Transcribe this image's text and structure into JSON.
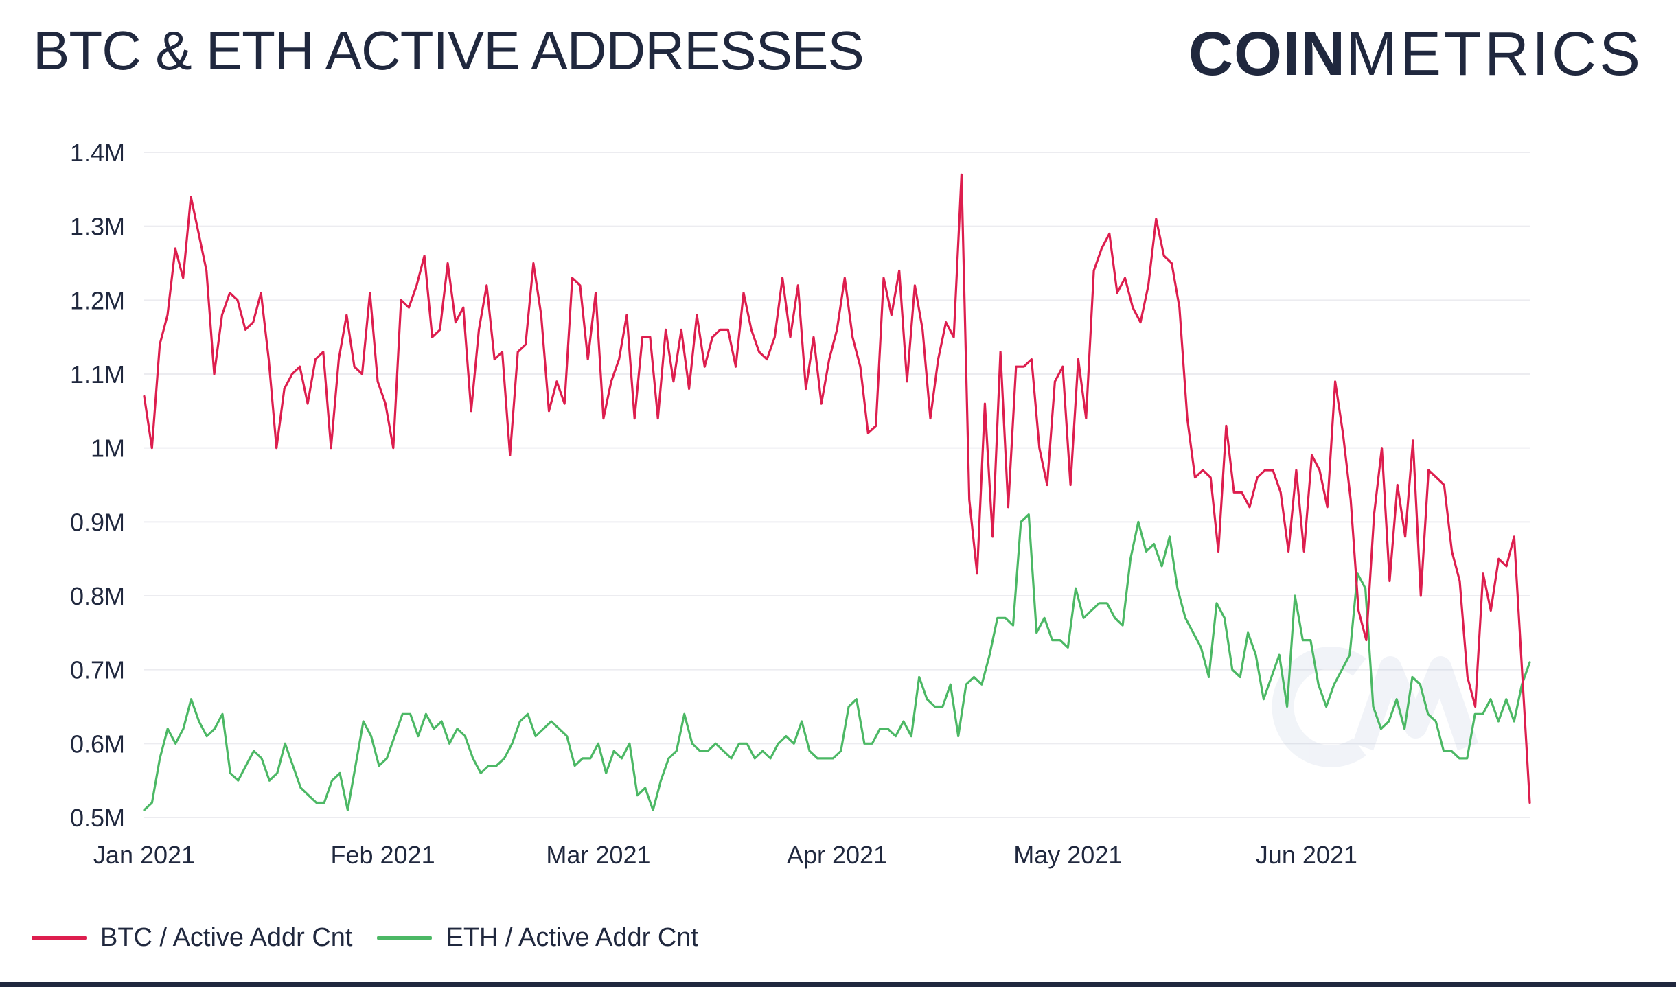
{
  "header": {
    "title": "BTC & ETH ACTIVE ADDRESSES"
  },
  "logo": {
    "bold": "COIN",
    "light": "METRICS"
  },
  "colors": {
    "btc": "#dd1e4e",
    "eth": "#4cb865",
    "grid": "#ececf0",
    "text": "#20283e"
  },
  "legend": {
    "btc_label": "BTC / Active Addr Cnt",
    "eth_label": "ETH / Active Addr Cnt"
  },
  "chart_data": {
    "type": "line",
    "title": "BTC & ETH ACTIVE ADDRESSES",
    "xlabel": "",
    "ylabel": "",
    "x_range": [
      "2021-01-01",
      "2021-06-30"
    ],
    "ylim": [
      0.5,
      1.4
    ],
    "y_unit": "M",
    "y_ticks": [
      0.5,
      0.6,
      0.7,
      0.8,
      0.9,
      1.0,
      1.1,
      1.2,
      1.3,
      1.4
    ],
    "y_tick_labels": [
      "0.5M",
      "0.6M",
      "0.7M",
      "0.8M",
      "0.9M",
      "1M",
      "1.1M",
      "1.2M",
      "1.3M",
      "1.4M"
    ],
    "x_ticks": [
      {
        "day": 0,
        "label": "Jan 2021"
      },
      {
        "day": 31,
        "label": "Feb 2021"
      },
      {
        "day": 59,
        "label": "Mar 2021"
      },
      {
        "day": 90,
        "label": "Apr 2021"
      },
      {
        "day": 120,
        "label": "May 2021"
      },
      {
        "day": 151,
        "label": "Jun 2021"
      }
    ],
    "grid": true,
    "legend_position": "bottom-left",
    "series": [
      {
        "name": "BTC / Active Addr Cnt",
        "color": "#dd1e4e",
        "values": [
          1.07,
          1.0,
          1.14,
          1.18,
          1.27,
          1.23,
          1.34,
          1.29,
          1.24,
          1.1,
          1.18,
          1.21,
          1.2,
          1.16,
          1.17,
          1.21,
          1.12,
          1.0,
          1.08,
          1.1,
          1.11,
          1.06,
          1.12,
          1.13,
          1.0,
          1.12,
          1.18,
          1.11,
          1.1,
          1.21,
          1.09,
          1.06,
          1.0,
          1.2,
          1.19,
          1.22,
          1.26,
          1.15,
          1.16,
          1.25,
          1.17,
          1.19,
          1.05,
          1.16,
          1.22,
          1.12,
          1.13,
          0.99,
          1.13,
          1.14,
          1.25,
          1.18,
          1.05,
          1.09,
          1.06,
          1.23,
          1.22,
          1.12,
          1.21,
          1.04,
          1.09,
          1.12,
          1.18,
          1.04,
          1.15,
          1.15,
          1.04,
          1.16,
          1.09,
          1.16,
          1.08,
          1.18,
          1.11,
          1.15,
          1.16,
          1.16,
          1.11,
          1.21,
          1.16,
          1.13,
          1.12,
          1.15,
          1.23,
          1.15,
          1.22,
          1.08,
          1.15,
          1.06,
          1.12,
          1.16,
          1.23,
          1.15,
          1.11,
          1.02,
          1.03,
          1.23,
          1.18,
          1.24,
          1.09,
          1.22,
          1.16,
          1.04,
          1.12,
          1.17,
          1.15,
          1.37,
          0.93,
          0.83,
          1.06,
          0.88,
          1.13,
          0.92,
          1.11,
          1.11,
          1.12,
          1.0,
          0.95,
          1.09,
          1.11,
          0.95,
          1.12,
          1.04,
          1.24,
          1.27,
          1.29,
          1.21,
          1.23,
          1.19,
          1.17,
          1.22,
          1.31,
          1.26,
          1.25,
          1.19,
          1.04,
          0.96,
          0.97,
          0.96,
          0.86,
          1.03,
          0.94,
          0.94,
          0.92,
          0.96,
          0.97,
          0.97,
          0.94,
          0.86,
          0.97,
          0.86,
          0.99,
          0.97,
          0.92,
          1.09,
          1.02,
          0.93,
          0.78,
          0.74,
          0.91,
          1.0,
          0.82,
          0.95,
          0.88,
          1.01,
          0.8,
          0.97,
          0.96,
          0.95,
          0.86,
          0.82,
          0.69,
          0.65,
          0.83,
          0.78,
          0.85,
          0.84,
          0.88,
          0.7,
          0.52
        ]
      },
      {
        "name": "ETH / Active Addr Cnt",
        "color": "#4cb865",
        "values": [
          0.51,
          0.52,
          0.58,
          0.62,
          0.6,
          0.62,
          0.66,
          0.63,
          0.61,
          0.62,
          0.64,
          0.56,
          0.55,
          0.57,
          0.59,
          0.58,
          0.55,
          0.56,
          0.6,
          0.57,
          0.54,
          0.53,
          0.52,
          0.52,
          0.55,
          0.56,
          0.51,
          0.57,
          0.63,
          0.61,
          0.57,
          0.58,
          0.61,
          0.64,
          0.64,
          0.61,
          0.64,
          0.62,
          0.63,
          0.6,
          0.62,
          0.61,
          0.58,
          0.56,
          0.57,
          0.57,
          0.58,
          0.6,
          0.63,
          0.64,
          0.61,
          0.62,
          0.63,
          0.62,
          0.61,
          0.57,
          0.58,
          0.58,
          0.6,
          0.56,
          0.59,
          0.58,
          0.6,
          0.53,
          0.54,
          0.51,
          0.55,
          0.58,
          0.59,
          0.64,
          0.6,
          0.59,
          0.59,
          0.6,
          0.59,
          0.58,
          0.6,
          0.6,
          0.58,
          0.59,
          0.58,
          0.6,
          0.61,
          0.6,
          0.63,
          0.59,
          0.58,
          0.58,
          0.58,
          0.59,
          0.65,
          0.66,
          0.6,
          0.6,
          0.62,
          0.62,
          0.61,
          0.63,
          0.61,
          0.69,
          0.66,
          0.65,
          0.65,
          0.68,
          0.61,
          0.68,
          0.69,
          0.68,
          0.72,
          0.77,
          0.77,
          0.76,
          0.9,
          0.91,
          0.75,
          0.77,
          0.74,
          0.74,
          0.73,
          0.81,
          0.77,
          0.78,
          0.79,
          0.79,
          0.77,
          0.76,
          0.85,
          0.9,
          0.86,
          0.87,
          0.84,
          0.88,
          0.81,
          0.77,
          0.75,
          0.73,
          0.69,
          0.79,
          0.77,
          0.7,
          0.69,
          0.75,
          0.72,
          0.66,
          0.69,
          0.72,
          0.65,
          0.8,
          0.74,
          0.74,
          0.68,
          0.65,
          0.68,
          0.7,
          0.72,
          0.83,
          0.81,
          0.65,
          0.62,
          0.63,
          0.66,
          0.62,
          0.69,
          0.68,
          0.64,
          0.63,
          0.59,
          0.59,
          0.58,
          0.58,
          0.64,
          0.64,
          0.66,
          0.63,
          0.66,
          0.63,
          0.68,
          0.71
        ]
      }
    ]
  }
}
